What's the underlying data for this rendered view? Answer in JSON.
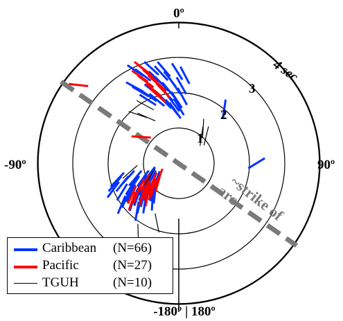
{
  "chart_data": {
    "type": "polar-stick",
    "radial_unit": "sec",
    "ring_labels": [
      "1",
      "2",
      "3",
      "4 sec"
    ],
    "angle_labels": {
      "top": "0º",
      "left": "-90º",
      "right": "90º",
      "bottom": "-180º | 180º"
    },
    "annotation": "~strike of arc",
    "colors": {
      "Caribbean": "#0033ff",
      "Pacific": "#ff0000",
      "TGUH": "#000000",
      "arc": "#7a7a7a"
    },
    "legend": [
      {
        "name": "Caribbean",
        "count": "(N=66)"
      },
      {
        "name": "Pacific",
        "count": "(N=27)"
      },
      {
        "name": "TGUH",
        "count": "(N=10)"
      }
    ],
    "series": [
      {
        "name": "Caribbean",
        "measurements": [
          {
            "phi": -25,
            "dt": 2.9
          },
          {
            "phi": -22,
            "dt": 2.7
          },
          {
            "phi": -30,
            "dt": 2.5
          },
          {
            "phi": -18,
            "dt": 2.6
          },
          {
            "phi": -28,
            "dt": 2.3
          },
          {
            "phi": -20,
            "dt": 2.2
          },
          {
            "phi": -15,
            "dt": 2.5
          },
          {
            "phi": -12,
            "dt": 2.3
          },
          {
            "phi": -10,
            "dt": 2.0
          },
          {
            "phi": -8,
            "dt": 2.1
          },
          {
            "phi": -6,
            "dt": 2.4
          },
          {
            "phi": -14,
            "dt": 1.9
          },
          {
            "phi": -3,
            "dt": 2.2
          },
          {
            "phi": -11,
            "dt": 2.6
          },
          {
            "phi": -16,
            "dt": 2.8
          },
          {
            "phi": -24,
            "dt": 2.1
          },
          {
            "phi": -5,
            "dt": 1.7
          },
          {
            "phi": -2,
            "dt": 1.8
          },
          {
            "phi": 2,
            "dt": 2.2
          },
          {
            "phi": -7,
            "dt": 1.6
          },
          {
            "phi": -26,
            "dt": 2.0
          },
          {
            "phi": -19,
            "dt": 1.9
          },
          {
            "phi": -13,
            "dt": 1.8
          },
          {
            "phi": -9,
            "dt": 2.7
          },
          {
            "phi": 4,
            "dt": 2.5
          },
          {
            "phi": 3,
            "dt": 1.9
          },
          {
            "phi": 0,
            "dt": 1.6
          },
          {
            "phi": -4,
            "dt": 1.5
          },
          {
            "phi": -1,
            "dt": 2.6
          },
          {
            "phi": -120,
            "dt": 0.9
          },
          {
            "phi": -125,
            "dt": 1.1
          },
          {
            "phi": -128,
            "dt": 1.3
          },
          {
            "phi": -132,
            "dt": 1.2
          },
          {
            "phi": -135,
            "dt": 1.0
          },
          {
            "phi": -138,
            "dt": 1.4
          },
          {
            "phi": -140,
            "dt": 1.5
          },
          {
            "phi": -118,
            "dt": 1.2
          },
          {
            "phi": -122,
            "dt": 1.6
          },
          {
            "phi": -110,
            "dt": 1.7
          },
          {
            "phi": -108,
            "dt": 1.9
          },
          {
            "phi": -112,
            "dt": 2.0
          },
          {
            "phi": -105,
            "dt": 1.8
          },
          {
            "phi": -115,
            "dt": 1.4
          },
          {
            "phi": -130,
            "dt": 1.7
          },
          {
            "phi": -142,
            "dt": 1.1
          },
          {
            "phi": -145,
            "dt": 1.3
          },
          {
            "phi": -127,
            "dt": 0.8
          },
          {
            "phi": -119,
            "dt": 1.0
          },
          {
            "phi": -136,
            "dt": 1.6
          },
          {
            "phi": -113,
            "dt": 1.1
          },
          {
            "phi": -124,
            "dt": 1.8
          },
          {
            "phi": -133,
            "dt": 0.9
          },
          {
            "phi": -116,
            "dt": 1.5
          },
          {
            "phi": -109,
            "dt": 1.3
          },
          {
            "phi": -139,
            "dt": 1.8
          },
          {
            "phi": -129,
            "dt": 1.5
          },
          {
            "phi": -121,
            "dt": 1.3
          },
          {
            "phi": -106,
            "dt": 1.5
          },
          {
            "phi": -117,
            "dt": 1.8
          },
          {
            "phi": -126,
            "dt": 2.0
          },
          {
            "phi": -134,
            "dt": 1.4
          },
          {
            "phi": -111,
            "dt": 0.9
          },
          {
            "phi": -123,
            "dt": 1.2
          },
          {
            "phi": -137,
            "dt": 1.1
          },
          {
            "phi": 90,
            "dt": 2.2
          },
          {
            "phi": 40,
            "dt": 2.0
          }
        ]
      },
      {
        "name": "Pacific",
        "measurements": [
          {
            "phi": -20,
            "dt": 2.8
          },
          {
            "phi": -18,
            "dt": 2.6
          },
          {
            "phi": -16,
            "dt": 2.4
          },
          {
            "phi": -22,
            "dt": 2.5
          },
          {
            "phi": -14,
            "dt": 2.3
          },
          {
            "phi": -19,
            "dt": 2.2
          },
          {
            "phi": -12,
            "dt": 2.1
          },
          {
            "phi": -24,
            "dt": 2.7
          },
          {
            "phi": -17,
            "dt": 2.0
          },
          {
            "phi": -21,
            "dt": 2.9
          },
          {
            "phi": -52,
            "dt": 3.6
          },
          {
            "phi": -55,
            "dt": 1.3
          },
          {
            "phi": -130,
            "dt": 1.0
          },
          {
            "phi": -128,
            "dt": 1.2
          },
          {
            "phi": -132,
            "dt": 1.4
          },
          {
            "phi": -125,
            "dt": 0.9
          },
          {
            "phi": -135,
            "dt": 1.1
          },
          {
            "phi": -122,
            "dt": 1.3
          },
          {
            "phi": -127,
            "dt": 1.5
          },
          {
            "phi": -133,
            "dt": 0.8
          },
          {
            "phi": -120,
            "dt": 1.1
          },
          {
            "phi": -137,
            "dt": 1.3
          },
          {
            "phi": -124,
            "dt": 1.6
          },
          {
            "phi": -131,
            "dt": 1.2
          },
          {
            "phi": -126,
            "dt": 0.7
          },
          {
            "phi": -129,
            "dt": 1.7
          },
          {
            "phi": -134,
            "dt": 1.0
          }
        ]
      },
      {
        "name": "TGUH",
        "measurements": [
          {
            "phi": -40,
            "dt": 1.8
          },
          {
            "phi": -35,
            "dt": 1.6
          },
          {
            "phi": -30,
            "dt": 1.9
          },
          {
            "phi": 35,
            "dt": 1.2
          },
          {
            "phi": 40,
            "dt": 1.0
          },
          {
            "phi": 45,
            "dt": 1.1
          },
          {
            "phi": -160,
            "dt": 1.8
          },
          {
            "phi": -150,
            "dt": 2.3
          },
          {
            "phi": -115,
            "dt": 0.9
          },
          {
            "phi": -100,
            "dt": 1.4
          }
        ]
      }
    ]
  }
}
